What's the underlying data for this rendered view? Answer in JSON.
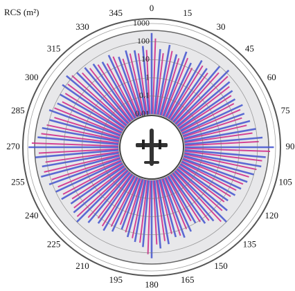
{
  "chart_data": {
    "type": "polar",
    "title": "RCS (m²)",
    "rscale": "log",
    "rlim": [
      0.01,
      1000
    ],
    "rticks": [
      0.01,
      0.1,
      1,
      10,
      100,
      1000
    ],
    "thetaticks": [
      0,
      15,
      30,
      45,
      60,
      75,
      90,
      105,
      120,
      135,
      150,
      165,
      180,
      195,
      210,
      225,
      240,
      255,
      270,
      285,
      300,
      315,
      330,
      345
    ],
    "theta": [
      0,
      5,
      10,
      15,
      20,
      25,
      30,
      35,
      40,
      45,
      50,
      55,
      60,
      65,
      70,
      75,
      80,
      85,
      90,
      95,
      100,
      105,
      110,
      115,
      120,
      125,
      130,
      135,
      140,
      145,
      150,
      155,
      160,
      165,
      170,
      175,
      180,
      185,
      190,
      195,
      200,
      205,
      210,
      215,
      220,
      225,
      230,
      235,
      240,
      245,
      250,
      255,
      260,
      265,
      270,
      275,
      280,
      285,
      290,
      295,
      300,
      305,
      310,
      315,
      320,
      325,
      330,
      335,
      340,
      345,
      350,
      355
    ],
    "series": [
      {
        "color": "#d0308c",
        "values": [
          150,
          25,
          40,
          20,
          30,
          12,
          30,
          20,
          50,
          80,
          40,
          25,
          20,
          30,
          25,
          35,
          60,
          120,
          500,
          200,
          120,
          60,
          40,
          25,
          20,
          15,
          25,
          60,
          20,
          12,
          6,
          12,
          20,
          12,
          25,
          35,
          120,
          30,
          20,
          12,
          6,
          12,
          20,
          12,
          25,
          60,
          40,
          25,
          50,
          60,
          90,
          180,
          120,
          250,
          600,
          200,
          120,
          60,
          90,
          50,
          60,
          90,
          120,
          60,
          50,
          40,
          25,
          40,
          20,
          30,
          25,
          35
        ]
      },
      {
        "color": "#4a5bd0",
        "values": [
          300,
          40,
          80,
          30,
          60,
          20,
          50,
          30,
          100,
          150,
          60,
          40,
          30,
          50,
          40,
          60,
          100,
          200,
          800,
          300,
          200,
          100,
          60,
          40,
          30,
          20,
          40,
          100,
          30,
          20,
          10,
          20,
          30,
          20,
          40,
          60,
          200,
          50,
          30,
          20,
          10,
          20,
          30,
          20,
          40,
          100,
          60,
          40,
          80,
          100,
          150,
          300,
          200,
          400,
          900,
          300,
          200,
          100,
          150,
          80,
          100,
          150,
          200,
          100,
          80,
          60,
          40,
          60,
          30,
          50,
          40,
          60
        ]
      }
    ]
  }
}
